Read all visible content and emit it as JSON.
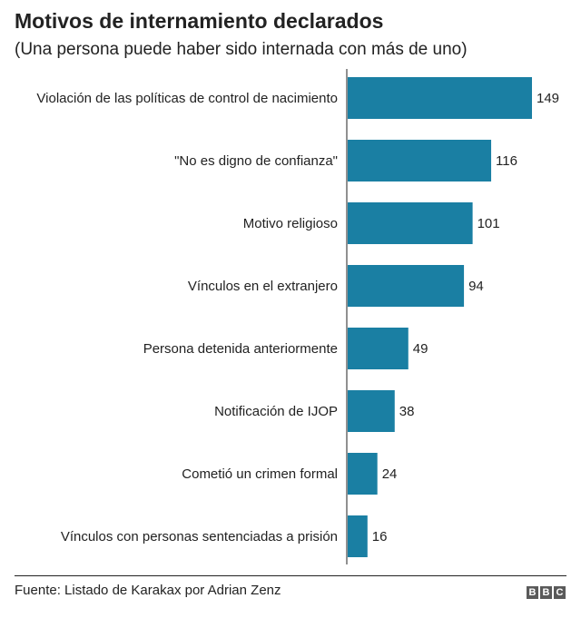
{
  "chart_data": {
    "type": "bar",
    "orientation": "horizontal",
    "title": "Motivos de internamiento declarados",
    "subtitle": "(Una persona puede haber sido internada con más de uno)",
    "categories": [
      "Violación de las políticas de control de nacimiento",
      "\"No es digno de confianza\"",
      "Motivo religioso",
      "Vínculos en el extranjero",
      "Persona detenida anteriormente",
      "Notificación de IJOP",
      "Cometió un crimen formal",
      "Vínculos con personas sentenciadas a prisión"
    ],
    "values": [
      149,
      116,
      101,
      94,
      49,
      38,
      24,
      16
    ],
    "value_labels": [
      "149",
      "116",
      "101",
      "94",
      "49",
      "38",
      "24",
      "16"
    ],
    "bar_color": "#1a7fa3",
    "xlim": [
      0,
      149
    ],
    "grid": false,
    "legend": "none"
  },
  "source": "Fuente: Listado de Karakax por Adrian Zenz",
  "logo_letters": [
    "B",
    "B",
    "C"
  ],
  "colors": {
    "bar": "#1a7fa3",
    "text": "#222222",
    "logo": "#5a5a5a"
  }
}
